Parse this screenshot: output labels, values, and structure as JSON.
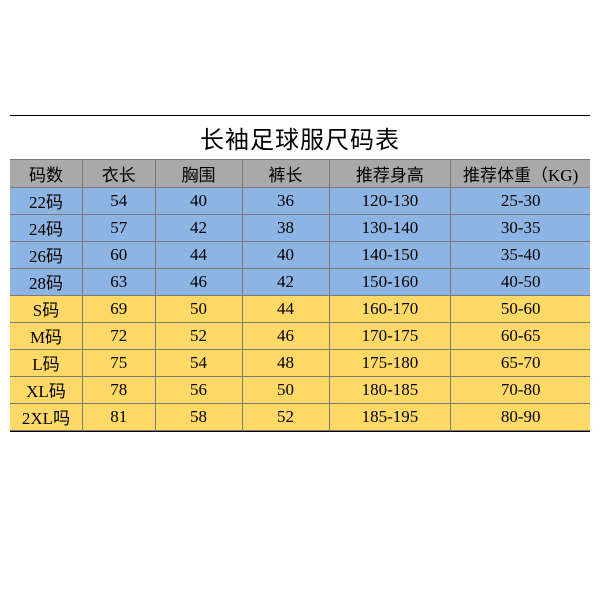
{
  "title": "长袖足球服尺码表",
  "columns": [
    "码数",
    "衣长",
    "胸围",
    "裤长",
    "推荐身高",
    "推荐体重（KG)"
  ],
  "column_widths_pct": [
    12.5,
    12.5,
    15,
    15,
    21,
    24
  ],
  "header_bg": "#a9a9a9",
  "group_colors": {
    "kids": "#8db4e2",
    "adults": "#ffd966"
  },
  "border_color": "#7a7a7a",
  "outer_border_color": "#000000",
  "font_size_title": 24,
  "font_size_body": 17,
  "rows": [
    {
      "group": "kids",
      "cells": [
        "22码",
        "54",
        "40",
        "36",
        "120-130",
        "25-30"
      ]
    },
    {
      "group": "kids",
      "cells": [
        "24码",
        "57",
        "42",
        "38",
        "130-140",
        "30-35"
      ]
    },
    {
      "group": "kids",
      "cells": [
        "26码",
        "60",
        "44",
        "40",
        "140-150",
        "35-40"
      ]
    },
    {
      "group": "kids",
      "cells": [
        "28码",
        "63",
        "46",
        "42",
        "150-160",
        "40-50"
      ]
    },
    {
      "group": "adults",
      "cells": [
        "S码",
        "69",
        "50",
        "44",
        "160-170",
        "50-60"
      ]
    },
    {
      "group": "adults",
      "cells": [
        "M码",
        "72",
        "52",
        "46",
        "170-175",
        "60-65"
      ]
    },
    {
      "group": "adults",
      "cells": [
        "L码",
        "75",
        "54",
        "48",
        "175-180",
        "65-70"
      ]
    },
    {
      "group": "adults",
      "cells": [
        "XL码",
        "78",
        "56",
        "50",
        "180-185",
        "70-80"
      ]
    },
    {
      "group": "adults",
      "cells": [
        "2XL吗",
        "81",
        "58",
        "52",
        "185-195",
        "80-90"
      ]
    }
  ]
}
